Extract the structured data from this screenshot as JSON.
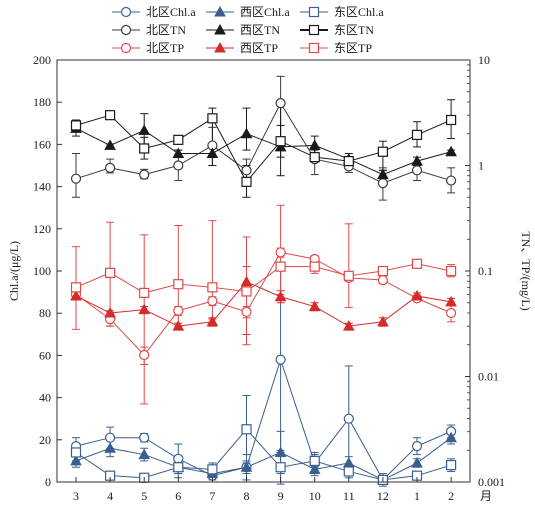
{
  "chart_data": {
    "type": "line",
    "x": [
      "3",
      "4",
      "5",
      "6",
      "7",
      "8",
      "9",
      "10",
      "11",
      "12",
      "1",
      "2"
    ],
    "x_unit": "月",
    "y_left": {
      "label": "Chl.a/(μg/L)",
      "lim": [
        0,
        200
      ],
      "ticks": [
        "0",
        "20",
        "40",
        "60",
        "80",
        "100",
        "120",
        "140",
        "160",
        "180",
        "200"
      ]
    },
    "y_right": {
      "label": "TN、TP/(mg/L)",
      "scale": "log",
      "lim": [
        0.001,
        10
      ],
      "ticks": [
        "0.001",
        "0.01",
        "0.1",
        "1",
        "10"
      ]
    },
    "legend_placement": "top",
    "series": [
      {
        "name": "北区Chl.a",
        "axis": "left",
        "color": "#3a5f8f",
        "marker": "circle-open",
        "values": [
          17,
          21,
          21,
          11,
          3,
          7,
          58,
          9,
          30,
          1,
          17,
          24
        ],
        "errors": [
          4,
          5,
          2,
          7,
          3,
          6,
          44,
          5,
          25,
          3,
          4,
          3
        ]
      },
      {
        "name": "西区Chl.a",
        "axis": "left",
        "color": "#3a5f8f",
        "marker": "triangle-filled",
        "values": [
          10,
          16,
          13,
          7,
          4,
          7,
          14,
          6,
          9,
          1,
          9,
          21
        ],
        "errors": [
          3,
          4,
          3,
          3,
          3,
          3,
          10,
          3,
          3,
          2,
          2,
          3
        ]
      },
      {
        "name": "东区Chl.a",
        "axis": "left",
        "color": "#3a5f8f",
        "marker": "square-open",
        "values": [
          14,
          3,
          2,
          7,
          6,
          25,
          7,
          10,
          5,
          1,
          3,
          8
        ],
        "errors": [
          4,
          2,
          2,
          5,
          3,
          16,
          8,
          3,
          3,
          2,
          2,
          3
        ]
      },
      {
        "name": "北区TN",
        "axis": "right",
        "color": "#3a3a3a",
        "marker": "circle-open",
        "values": [
          0.75,
          0.95,
          0.82,
          1.0,
          1.55,
          0.9,
          3.9,
          1.15,
          0.98,
          0.68,
          0.9,
          0.72
        ],
        "err_hi": [
          1.3,
          1.15,
          0.92,
          1.4,
          2.3,
          1.15,
          7.0,
          1.45,
          1.15,
          0.95,
          1.05,
          0.95
        ],
        "err_lo": [
          0.5,
          0.85,
          0.75,
          0.72,
          1.0,
          0.72,
          1.7,
          0.82,
          0.86,
          0.47,
          0.72,
          0.55
        ]
      },
      {
        "name": "西区TN",
        "axis": "right",
        "color": "#1a1a1a",
        "marker": "triangle-filled",
        "values": [
          2.25,
          1.55,
          2.15,
          1.3,
          1.3,
          2.0,
          1.5,
          1.55,
          1.15,
          0.82,
          1.1,
          1.35
        ],
        "err_hi": [
          2.7,
          1.6,
          3.1,
          1.4,
          1.6,
          3.5,
          4.0,
          1.9,
          1.3,
          0.9,
          1.2,
          1.4
        ],
        "err_lo": [
          1.9,
          1.5,
          1.5,
          1.2,
          1.0,
          1.4,
          0.8,
          1.2,
          1.0,
          0.7,
          1.0,
          1.3
        ]
      },
      {
        "name": "东区TN",
        "axis": "right",
        "color": "#1a1a1a",
        "marker": "square-open",
        "values": [
          2.4,
          3.0,
          1.45,
          1.75,
          2.8,
          0.7,
          1.7,
          1.2,
          1.1,
          1.35,
          1.95,
          2.7
        ],
        "err_hi": [
          2.6,
          3.1,
          1.85,
          1.9,
          3.5,
          1.0,
          2.4,
          1.4,
          1.2,
          1.7,
          2.6,
          4.2
        ],
        "err_lo": [
          2.2,
          2.9,
          1.15,
          1.6,
          1.2,
          0.5,
          1.2,
          1.1,
          1.0,
          0.9,
          1.5,
          1.8
        ]
      },
      {
        "name": "北区TP",
        "axis": "right",
        "color": "#e04a4a",
        "marker": "circle-open",
        "values": [
          0.06,
          0.035,
          0.016,
          0.042,
          0.052,
          0.041,
          0.15,
          0.13,
          0.086,
          0.082,
          0.055,
          0.04
        ],
        "err_hi": [
          0.066,
          0.04,
          0.019,
          0.046,
          0.057,
          0.046,
          0.165,
          0.14,
          0.092,
          0.088,
          0.058,
          0.047
        ],
        "err_lo": [
          0.054,
          0.03,
          0.013,
          0.038,
          0.047,
          0.036,
          0.135,
          0.12,
          0.08,
          0.076,
          0.052,
          0.033
        ]
      },
      {
        "name": "西区TP",
        "axis": "right",
        "color": "#d42b2b",
        "marker": "triangle-filled",
        "values": [
          0.058,
          0.04,
          0.043,
          0.03,
          0.033,
          0.079,
          0.057,
          0.046,
          0.03,
          0.033,
          0.058,
          0.051
        ],
        "err_hi": [
          0.062,
          0.042,
          0.046,
          0.032,
          0.036,
          0.11,
          0.065,
          0.05,
          0.032,
          0.036,
          0.062,
          0.055
        ],
        "err_lo": [
          0.054,
          0.038,
          0.04,
          0.028,
          0.03,
          0.025,
          0.05,
          0.042,
          0.028,
          0.03,
          0.055,
          0.047
        ]
      },
      {
        "name": "东区TP",
        "axis": "right",
        "color": "#e04a4a",
        "marker": "square-open",
        "values": [
          0.07,
          0.096,
          0.062,
          0.075,
          0.07,
          0.064,
          0.11,
          0.11,
          0.09,
          0.1,
          0.117,
          0.1
        ],
        "err_hi": [
          0.17,
          0.29,
          0.22,
          0.27,
          0.3,
          0.21,
          0.42,
          0.13,
          0.28,
          0.11,
          0.123,
          0.115
        ],
        "err_lo": [
          0.028,
          0.03,
          0.0055,
          0.03,
          0.035,
          0.02,
          0.06,
          0.095,
          0.045,
          0.085,
          0.11,
          0.088
        ]
      }
    ],
    "legend": [
      [
        "北区Chl.a",
        "西区Chl.a",
        "东区Chl.a"
      ],
      [
        "北区TN",
        "西区TN",
        "东区TN"
      ],
      [
        "北区TP",
        "西区TP",
        "东区TP"
      ]
    ]
  }
}
